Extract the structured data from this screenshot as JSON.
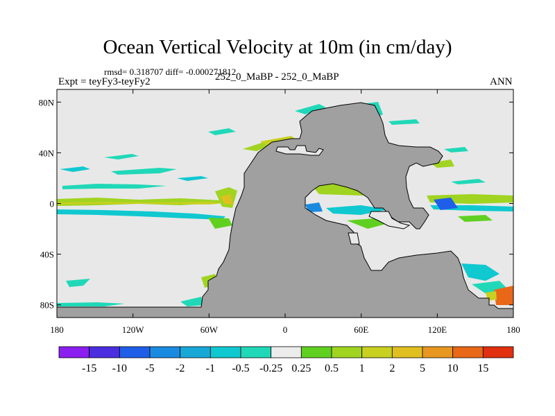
{
  "title": "Ocean Vertical Velocity at 10m (in cm/day)",
  "stats_line": "rmsd= 0.318707 diff= -0.000271812",
  "experiment": "Expt = teyFy3-teyFy2",
  "case_label": "252_0_MaBP - 252_0_MaBP",
  "season": "ANN",
  "map": {
    "lon_range": [
      -180,
      180
    ],
    "lat_range": [
      -90,
      90
    ],
    "lat_ticks": [
      {
        "value": 80,
        "label": "80N"
      },
      {
        "value": 40,
        "label": "40N"
      },
      {
        "value": 0,
        "label": "0"
      },
      {
        "value": -40,
        "label": "40S"
      },
      {
        "value": -80,
        "label": "80S"
      }
    ],
    "lon_ticks": [
      {
        "value": -180,
        "label": "180"
      },
      {
        "value": -120,
        "label": "120W"
      },
      {
        "value": -60,
        "label": "60W"
      },
      {
        "value": 0,
        "label": "0"
      },
      {
        "value": 60,
        "label": "60E"
      },
      {
        "value": 120,
        "label": "120E"
      },
      {
        "value": 180,
        "label": "180"
      }
    ],
    "colors": {
      "ocean_background": "#e8e8e8",
      "land": "#a0a0a0",
      "coastline": "#000000"
    }
  },
  "colorbar": {
    "colors": [
      "#8a1ff0",
      "#4a2ee0",
      "#1f5ee8",
      "#1a8ae0",
      "#18a8d8",
      "#10c8d0",
      "#20d8b8",
      "#ececec",
      "#60d020",
      "#a0d420",
      "#c8d020",
      "#e0c020",
      "#e89820",
      "#e86818",
      "#e03010"
    ],
    "labels": [
      "-15",
      "-10",
      "-5",
      "-2",
      "-1",
      "-0.5",
      "-0.25",
      "0.25",
      "0.5",
      "1",
      "2",
      "5",
      "10",
      "15"
    ]
  }
}
